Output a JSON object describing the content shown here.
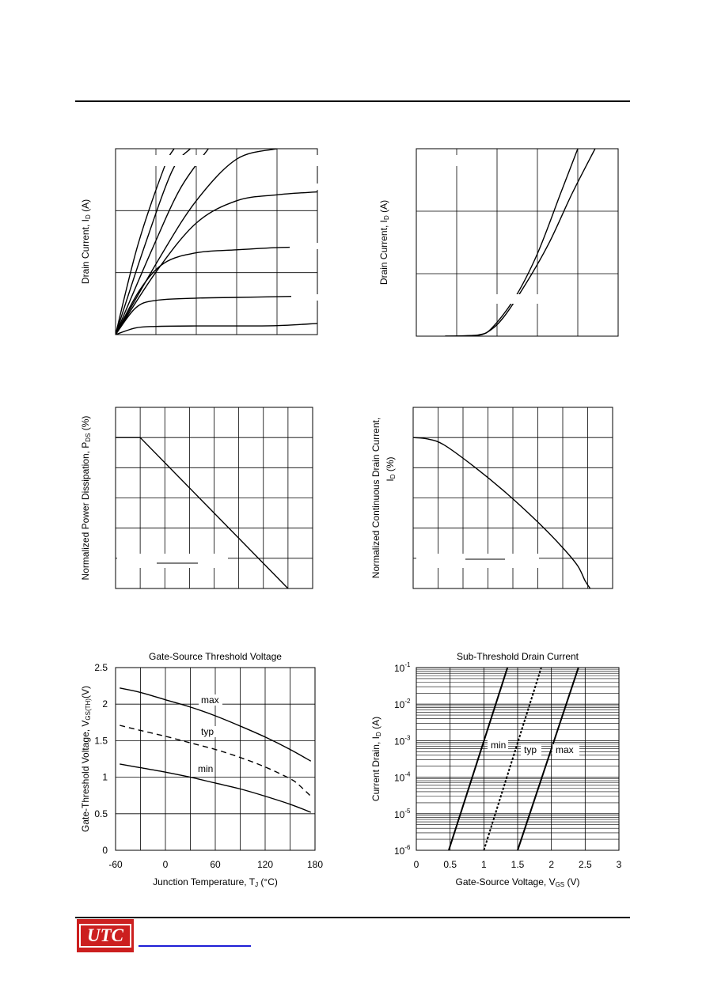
{
  "chart_data": [
    {
      "id": "output",
      "type": "line",
      "ylabel": "Drain Current, I",
      "ylabel_sub": "D",
      "ylabel_unit": " (A)",
      "series": [
        {
          "values": [
            [
              0,
              0
            ],
            [
              0.55,
              0.6
            ],
            [
              1.2,
              1.12
            ],
            [
              1.45,
              1.25
            ]
          ]
        },
        {
          "values": [
            [
              0,
              0
            ],
            [
              0.7,
              0.58
            ],
            [
              1.4,
              1.1
            ],
            [
              1.85,
              1.25
            ]
          ]
        },
        {
          "values": [
            [
              0,
              0
            ],
            [
              0.9,
              0.57
            ],
            [
              1.6,
              0.98
            ],
            [
              2.3,
              1.25
            ]
          ]
        },
        {
          "values": [
            [
              0,
              0
            ],
            [
              1.1,
              0.52
            ],
            [
              2.0,
              0.9
            ],
            [
              3.0,
              1.18
            ],
            [
              4.0,
              1.25
            ]
          ]
        },
        {
          "values": [
            [
              0,
              0
            ],
            [
              1.0,
              0.42
            ],
            [
              2.0,
              0.75
            ],
            [
              3.0,
              0.9
            ],
            [
              4.0,
              0.94
            ],
            [
              5.0,
              0.96
            ]
          ]
        },
        {
          "values": [
            [
              0,
              0
            ],
            [
              0.6,
              0.3
            ],
            [
              1.2,
              0.48
            ],
            [
              2.0,
              0.55
            ],
            [
              3.0,
              0.57
            ],
            [
              4.0,
              0.585
            ],
            [
              5.0,
              0.59
            ]
          ]
        },
        {
          "values": [
            [
              0,
              0
            ],
            [
              0.5,
              0.18
            ],
            [
              1.0,
              0.23
            ],
            [
              2.0,
              0.245
            ],
            [
              3.0,
              0.25
            ],
            [
              4.0,
              0.255
            ],
            [
              5.0,
              0.26
            ]
          ]
        },
        {
          "values": [
            [
              0,
              0
            ],
            [
              0.5,
              0.045
            ],
            [
              1.0,
              0.055
            ],
            [
              2.0,
              0.058
            ],
            [
              3.0,
              0.058
            ],
            [
              4.0,
              0.06
            ],
            [
              5.0,
              0.075
            ]
          ]
        }
      ],
      "xlim": [
        0,
        5
      ],
      "ylim": [
        0,
        1.25
      ],
      "grid": true
    },
    {
      "id": "transfer",
      "type": "line",
      "ylabel": "Drain Current, I",
      "ylabel_sub": "D",
      "ylabel_unit": " (A)",
      "series": [
        {
          "values": [
            [
              1.0,
              0
            ],
            [
              1.35,
              0.003
            ],
            [
              1.6,
              0.01
            ],
            [
              1.8,
              0.05
            ],
            [
              2.2,
              0.25
            ],
            [
              2.6,
              0.55
            ],
            [
              3.0,
              0.95
            ],
            [
              3.2,
              1.15
            ],
            [
              3.3,
              1.25
            ]
          ]
        },
        {
          "values": [
            [
              1.0,
              0
            ],
            [
              1.4,
              0.003
            ],
            [
              1.7,
              0.02
            ],
            [
              2.0,
              0.12
            ],
            [
              2.4,
              0.35
            ],
            [
              2.8,
              0.62
            ],
            [
              3.2,
              0.95
            ],
            [
              3.6,
              1.25
            ]
          ]
        }
      ],
      "xlim": [
        0.5,
        4
      ],
      "ylim": [
        0,
        1.25
      ],
      "grid": true
    },
    {
      "id": "power-derating",
      "type": "line",
      "ylabel": "Normalized Power Dissipation, P",
      "ylabel_sub": "DS",
      "ylabel_unit": " (%)",
      "series": [
        {
          "values": [
            [
              0,
              100
            ],
            [
              25,
              100
            ],
            [
              175,
              0
            ]
          ]
        }
      ],
      "xlim": [
        0,
        200
      ],
      "ylim": [
        0,
        120
      ],
      "grid": true
    },
    {
      "id": "current-derating",
      "type": "line",
      "ylabel": "Normalized Continuous Drain Current,",
      "ylabel2": "I",
      "ylabel2_sub": "D",
      "ylabel2_unit": " (%)",
      "series": [
        {
          "values": [
            [
              0,
              100
            ],
            [
              12,
              99
            ],
            [
              25,
              95
            ],
            [
              50,
              80
            ],
            [
              75,
              63
            ],
            [
              100,
              44
            ],
            [
              120,
              27
            ],
            [
              132,
              15
            ],
            [
              138,
              5
            ],
            [
              142,
              0
            ]
          ]
        }
      ],
      "xlim": [
        0,
        160
      ],
      "ylim": [
        0,
        120
      ],
      "grid": true
    },
    {
      "id": "threshold",
      "type": "line",
      "title": "Gate-Source Threshold Voltage",
      "xlabel": "Junction Temperature, T",
      "xlabel_sub": "J",
      "xlabel_unit": " (°C)",
      "ylabel": "Gate-Threshold Voltage, V",
      "ylabel_sub": "GS(TH)",
      "ylabel_unit": "(V)",
      "x_ticks": [
        "-60",
        "0",
        "60",
        "120",
        "180"
      ],
      "y_ticks": [
        "0",
        "0.5",
        "1",
        "1.5",
        "2",
        "2.5"
      ],
      "series": [
        {
          "name": "max",
          "values": [
            [
              -55,
              2.22
            ],
            [
              -30,
              2.16
            ],
            [
              0,
              2.06
            ],
            [
              30,
              1.96
            ],
            [
              60,
              1.84
            ],
            [
              90,
              1.7
            ],
            [
              120,
              1.55
            ],
            [
              150,
              1.38
            ],
            [
              175,
              1.22
            ]
          ]
        },
        {
          "name": "typ",
          "values": [
            [
              -55,
              1.71
            ],
            [
              -30,
              1.64
            ],
            [
              0,
              1.56
            ],
            [
              30,
              1.47
            ],
            [
              60,
              1.38
            ],
            [
              90,
              1.27
            ],
            [
              120,
              1.14
            ],
            [
              150,
              0.98
            ],
            [
              160,
              0.9
            ],
            [
              175,
              0.74
            ]
          ]
        },
        {
          "name": "min",
          "values": [
            [
              -55,
              1.18
            ],
            [
              -30,
              1.13
            ],
            [
              0,
              1.07
            ],
            [
              30,
              1.0
            ],
            [
              60,
              0.92
            ],
            [
              90,
              0.84
            ],
            [
              120,
              0.74
            ],
            [
              150,
              0.63
            ],
            [
              175,
              0.52
            ]
          ]
        }
      ],
      "xlim": [
        -60,
        180
      ],
      "ylim": [
        0,
        2.5
      ],
      "grid": true
    },
    {
      "id": "subthreshold",
      "type": "line",
      "title": "Sub-Threshold Drain Current",
      "xlabel": "Gate-Source Voltage, V",
      "xlabel_sub": "GS",
      "xlabel_unit": " (V)",
      "ylabel": "Current Drain, I",
      "ylabel_sub": "D",
      "ylabel_unit": " (A)",
      "log_y": true,
      "x_ticks": [
        "0",
        "0.5",
        "1",
        "1.5",
        "2",
        "2.5",
        "3"
      ],
      "y_ticks": [
        {
          "base": "10",
          "exp": "-6"
        },
        {
          "base": "10",
          "exp": "-5"
        },
        {
          "base": "10",
          "exp": "-4"
        },
        {
          "base": "10",
          "exp": "-3"
        },
        {
          "base": "10",
          "exp": "-2"
        },
        {
          "base": "10",
          "exp": "-1"
        }
      ],
      "series": [
        {
          "name": "min",
          "values": [
            [
              0.48,
              1e-06
            ],
            [
              1.35,
              0.1
            ]
          ]
        },
        {
          "name": "typ",
          "values": [
            [
              1.0,
              1e-06
            ],
            [
              1.85,
              0.1
            ]
          ]
        },
        {
          "name": "max",
          "values": [
            [
              1.5,
              1e-06
            ],
            [
              2.4,
              0.1
            ]
          ]
        }
      ],
      "xlim": [
        0,
        3
      ],
      "ylim_exp": [
        -6,
        -1
      ],
      "grid": true
    }
  ],
  "logo": {
    "text": "UTC",
    "color": "#cc1f1f"
  }
}
